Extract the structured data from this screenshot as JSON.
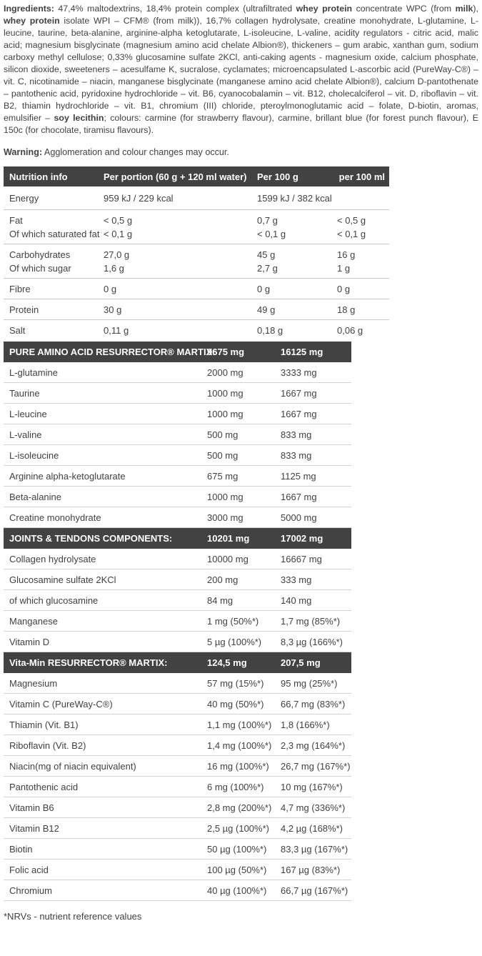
{
  "colors": {
    "bar_background": "#424242",
    "bar_text": "#ffffff",
    "body_text": "#414141",
    "divider": "#cccccc"
  },
  "ingredients": {
    "segments": [
      {
        "t": "Ingredients: ",
        "b": true
      },
      {
        "t": "47,4% maltodextrins, 18,4% protein complex (ultrafiltrated ",
        "b": false
      },
      {
        "t": "whey protein",
        "b": true
      },
      {
        "t": " concentrate WPC (from ",
        "b": false
      },
      {
        "t": "milk",
        "b": true
      },
      {
        "t": "), ",
        "b": false
      },
      {
        "t": "whey protein",
        "b": true
      },
      {
        "t": " isolate WPI – CFM® (from milk)), 16,7% collagen hydrolysate, creatine monohydrate, L-glutamine, L-leucine, taurine, beta-alanine, arginine-alpha ketoglutarate, L-isoleucine, L-valine, acidity regulators - citric acid, malic acid; magnesium bisglycinate (magnesium amino acid chelate Albion®), thickeners – gum arabic, xanthan gum, sodium carboxy methyl cellulose; 0,33% glucosamine sulfate 2KCl, anti-caking agents - magnesium oxide, calcium phosphate, silicon dioxide, sweeteners – acesulfame K, sucralose, cyclamates; microencapsulated L-ascorbic acid (PureWay-C®) – vit. C, nicotinamide – niacin, manganese bisglycinate (manganese amino acid chelate Albion®), calcium D-pantothenate – pantothenic acid, pyridoxine hydrochloride – vit. B6, cyanocobalamin – vit. B12, cholecalciferol – vit. D, riboflavin – vit. B2, thiamin hydrochloride – vit. B1, chromium (III) chloride, pteroylmonoglutamic acid – folate, D-biotin, aromas, emulsifier – ",
        "b": false
      },
      {
        "t": "soy lecithin",
        "b": true
      },
      {
        "t": "; colours: carmine (for strawberry flavour), carmine, brillant blue (for forest punch flavour), E 150c (for chocolate, tiramisu flavours).",
        "b": false
      }
    ]
  },
  "warning": {
    "label": "Warning:",
    "text": " Agglomeration and colour changes may occur."
  },
  "nutrition_table": {
    "columns": [
      "Nutrition info",
      "Per portion (60 g + 120 ml water)",
      "Per 100 g",
      "per 100 ml"
    ],
    "groups": [
      {
        "rows": [
          {
            "label": "Energy",
            "per_portion": "959 kJ / 229 kcal",
            "per_100g": "1599 kJ / 382 kcal",
            "per_100ml": ""
          }
        ]
      },
      {
        "rows": [
          {
            "label": "Fat",
            "per_portion": "< 0,5 g",
            "per_100g": "0,7 g",
            "per_100ml": "< 0,5 g"
          },
          {
            "label": "Of which saturated fat",
            "per_portion": "< 0,1 g",
            "per_100g": "< 0,1 g",
            "per_100ml": "< 0,1 g"
          }
        ]
      },
      {
        "rows": [
          {
            "label": "Carbohydrates",
            "per_portion": "27,0 g",
            "per_100g": "45 g",
            "per_100ml": "16 g"
          },
          {
            "label": "Of which sugar",
            "per_portion": "1,6 g",
            "per_100g": "2,7 g",
            "per_100ml": "1 g"
          }
        ]
      },
      {
        "rows": [
          {
            "label": "Fibre",
            "per_portion": "0 g",
            "per_100g": "0 g",
            "per_100ml": "0 g"
          }
        ]
      },
      {
        "rows": [
          {
            "label": "Protein",
            "per_portion": "30 g",
            "per_100g": "49 g",
            "per_100ml": "18 g"
          }
        ]
      },
      {
        "rows": [
          {
            "label": "Salt",
            "per_portion": "0,11 g",
            "per_100g": "0,18 g",
            "per_100ml": "0,06 g"
          }
        ]
      }
    ]
  },
  "sections": [
    {
      "title": "PURE AMINO ACID RESURRECTOR® MARTIX:",
      "per_portion": "9675 mg",
      "per_100g": "16125 mg",
      "rows": [
        {
          "label": "L-glutamine",
          "per_portion": "2000 mg",
          "per_100g": "3333 mg"
        },
        {
          "label": "Taurine",
          "per_portion": "1000 mg",
          "per_100g": "1667 mg"
        },
        {
          "label": "L-leucine",
          "per_portion": "1000 mg",
          "per_100g": "1667 mg"
        },
        {
          "label": "L-valine",
          "per_portion": "500 mg",
          "per_100g": "833 mg"
        },
        {
          "label": "L-isoleucine",
          "per_portion": "500 mg",
          "per_100g": "833 mg"
        },
        {
          "label": "Arginine alpha-ketoglutarate",
          "per_portion": "675 mg",
          "per_100g": "1125 mg"
        },
        {
          "label": "Beta-alanine",
          "per_portion": "1000 mg",
          "per_100g": "1667 mg"
        },
        {
          "label": "Creatine monohydrate",
          "per_portion": "3000 mg",
          "per_100g": "5000 mg"
        }
      ]
    },
    {
      "title": "JOINTS & TENDONS COMPONENTS:",
      "per_portion": "10201 mg",
      "per_100g": "17002 mg",
      "rows": [
        {
          "label": "Collagen hydrolysate",
          "per_portion": "10000 mg",
          "per_100g": "16667 mg"
        },
        {
          "label": "Glucosamine sulfate 2KCl",
          "per_portion": "200 mg",
          "per_100g": "333 mg"
        },
        {
          "label": "of which glucosamine",
          "per_portion": "84 mg",
          "per_100g": "140 mg"
        },
        {
          "label": "Manganese",
          "per_portion": "1 mg (50%*)",
          "per_100g": "1,7 mg (85%*)"
        },
        {
          "label": "Vitamin D",
          "per_portion": "5 µg (100%*)",
          "per_100g": "8,3 µg (166%*)"
        }
      ]
    },
    {
      "title": "Vita-Min RESURRECTOR® MARTIX:",
      "per_portion": "124,5 mg",
      "per_100g": "207,5 mg",
      "rows": [
        {
          "label": "Magnesium",
          "per_portion": "57 mg (15%*)",
          "per_100g": "95 mg (25%*)"
        },
        {
          "label": "Vitamin C (PureWay-C®)",
          "per_portion": "40 mg (50%*)",
          "per_100g": "66,7 mg (83%*)"
        },
        {
          "label": "Thiamin (Vit. B1)",
          "per_portion": "1,1 mg (100%*)",
          "per_100g": "1,8 (166%*)"
        },
        {
          "label": "Riboflavin (Vit. B2)",
          "per_portion": "1,4 mg (100%*)",
          "per_100g": "2,3 mg (164%*)"
        },
        {
          "label": "Niacin(mg of niacin equivalent)",
          "per_portion": "16 mg (100%*)",
          "per_100g": "26,7 mg (167%*)"
        },
        {
          "label": "Pantothenic acid",
          "per_portion": "6 mg (100%*)",
          "per_100g": "10 mg (167%*)"
        },
        {
          "label": "Vitamin B6",
          "per_portion": "2,8 mg (200%*)",
          "per_100g": "4,7 mg (336%*)"
        },
        {
          "label": "Vitamin B12",
          "per_portion": "2,5 µg (100%*)",
          "per_100g": "4,2 µg (168%*)"
        },
        {
          "label": "Biotin",
          "per_portion": "50 µg (100%*)",
          "per_100g": "83,3 µg (167%*)"
        },
        {
          "label": "Folic acid",
          "per_portion": "100 µg (50%*)",
          "per_100g": "167 µg (83%*)"
        },
        {
          "label": "Chromium",
          "per_portion": "40 µg (100%*)",
          "per_100g": "66,7 µg (167%*)"
        }
      ]
    }
  ],
  "footnote": "*NRVs - nutrient reference values"
}
